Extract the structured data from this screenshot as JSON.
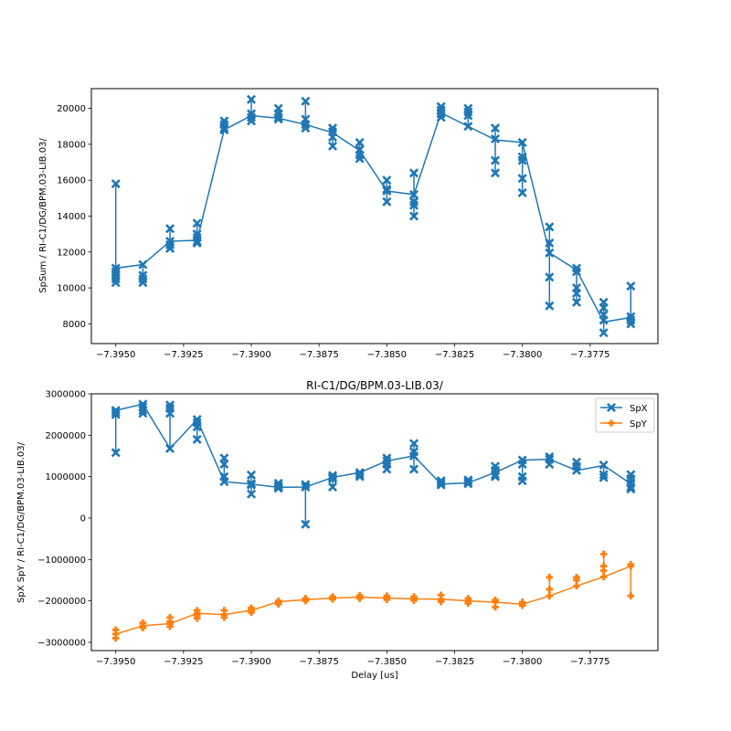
{
  "chart_data": [
    {
      "type": "line",
      "title": "",
      "xlabel": "",
      "ylabel": "SpSum / RI-C1/DG/BPM.03-LIB.03/",
      "xlim": [
        -7.3959,
        -7.375
      ],
      "ylim": [
        6900,
        21100
      ],
      "xticks": [
        -7.395,
        -7.3925,
        -7.39,
        -7.3875,
        -7.385,
        -7.3825,
        -7.38,
        -7.3775
      ],
      "xtick_labels": [
        "−7.3950",
        "−7.3925",
        "−7.3900",
        "−7.3875",
        "−7.3850",
        "−7.3825",
        "−7.3800",
        "−7.3775"
      ],
      "yticks": [
        8000,
        10000,
        12000,
        14000,
        16000,
        18000,
        20000
      ],
      "ytick_labels": [
        "8000",
        "10000",
        "12000",
        "14000",
        "16000",
        "18000",
        "20000"
      ],
      "grid": false,
      "series": [
        {
          "name": "SpSum",
          "color": "#1f77b4",
          "marker": "X",
          "x": [
            -7.395,
            -7.394,
            -7.393,
            -7.392,
            -7.391,
            -7.39,
            -7.389,
            -7.388,
            -7.387,
            -7.386,
            -7.385,
            -7.384,
            -7.383,
            -7.382,
            -7.381,
            -7.38,
            -7.379,
            -7.378,
            -7.377,
            -7.376
          ],
          "mean": [
            11100,
            11300,
            12600,
            12650,
            18800,
            19600,
            19450,
            19100,
            18650,
            17650,
            15400,
            15200,
            19750,
            19000,
            18250,
            18100,
            11950,
            11000,
            8100,
            8350
          ],
          "samples": [
            [
              15800,
              11100,
              10900,
              10700,
              10500,
              10300
            ],
            [
              11300,
              10700,
              10500,
              10300
            ],
            [
              13300,
              12600,
              12400,
              12200
            ],
            [
              13600,
              13000,
              12800,
              12600,
              12500
            ],
            [
              19300,
              19100,
              18900,
              18800
            ],
            [
              20500,
              19700,
              19500,
              19300
            ],
            [
              20000,
              19700,
              19500,
              19400
            ],
            [
              20400,
              19400,
              19100,
              18900
            ],
            [
              18900,
              18700,
              18400,
              17900
            ],
            [
              18100,
              17700,
              17400,
              17200
            ],
            [
              16000,
              15500,
              15400,
              14800
            ],
            [
              16400,
              15200,
              14800,
              14600,
              14000
            ],
            [
              20100,
              19900,
              19700,
              19500
            ],
            [
              20000,
              19800,
              19600,
              19000
            ],
            [
              18900,
              18300,
              17100,
              16400
            ],
            [
              18100,
              17300,
              17100,
              16100,
              15300
            ],
            [
              13400,
              12500,
              11950,
              10600,
              9000
            ],
            [
              11100,
              10900,
              10000,
              9700,
              9200
            ],
            [
              9200,
              8900,
              8500,
              8200,
              7500
            ],
            [
              10100,
              8400,
              8200,
              8000
            ]
          ]
        }
      ]
    },
    {
      "type": "line",
      "title": "RI-C1/DG/BPM.03-LIB.03/",
      "xlabel": "Delay [us]",
      "ylabel": "SpX SpY / RI-C1/DG/BPM.03-LIB.03/",
      "xlim": [
        -7.3959,
        -7.375
      ],
      "ylim": [
        -3200000,
        3000000
      ],
      "xticks": [
        -7.395,
        -7.3925,
        -7.39,
        -7.3875,
        -7.385,
        -7.3825,
        -7.38,
        -7.3775
      ],
      "xtick_labels": [
        "−7.3950",
        "−7.3925",
        "−7.3900",
        "−7.3875",
        "−7.3850",
        "−7.3825",
        "−7.3800",
        "−7.3775"
      ],
      "yticks": [
        -3000000,
        -2000000,
        -1000000,
        0,
        1000000,
        2000000,
        3000000
      ],
      "ytick_labels": [
        "−3000000",
        "−2000000",
        "−1000000",
        "0",
        "1000000",
        "2000000",
        "3000000"
      ],
      "grid": false,
      "legend": {
        "position": "top-right",
        "entries": [
          "SpX",
          "SpY"
        ]
      },
      "series": [
        {
          "name": "SpX",
          "color": "#1f77b4",
          "marker": "X",
          "x": [
            -7.395,
            -7.394,
            -7.393,
            -7.392,
            -7.391,
            -7.39,
            -7.389,
            -7.388,
            -7.387,
            -7.386,
            -7.385,
            -7.384,
            -7.383,
            -7.382,
            -7.381,
            -7.38,
            -7.379,
            -7.378,
            -7.377,
            -7.376
          ],
          "mean": [
            2600000,
            2750000,
            1680000,
            2380000,
            880000,
            820000,
            740000,
            750000,
            980000,
            1100000,
            1380000,
            1500000,
            820000,
            850000,
            1100000,
            1400000,
            1420000,
            1150000,
            1270000,
            830000
          ],
          "samples": [
            [
              2600000,
              2550000,
              2500000,
              1580000
            ],
            [
              2750000,
              2680000,
              2600000,
              2530000
            ],
            [
              2730000,
              2650000,
              2530000,
              1680000
            ],
            [
              2380000,
              2300000,
              2200000,
              1900000
            ],
            [
              1450000,
              1300000,
              1000000,
              880000
            ],
            [
              1040000,
              830000,
              800000,
              580000
            ],
            [
              840000,
              780000,
              740000,
              720000
            ],
            [
              810000,
              750000,
              -150000
            ],
            [
              1030000,
              980000,
              950000,
              750000
            ],
            [
              1100000,
              1050000,
              1000000
            ],
            [
              1450000,
              1380000,
              1300000,
              1180000
            ],
            [
              1800000,
              1600000,
              1500000,
              1180000
            ],
            [
              900000,
              850000,
              800000
            ],
            [
              920000,
              880000,
              830000
            ],
            [
              1250000,
              1150000,
              1050000,
              1000000
            ],
            [
              1400000,
              1300000,
              1000000,
              900000
            ],
            [
              1480000,
              1420000,
              1300000
            ],
            [
              1350000,
              1250000,
              1150000
            ],
            [
              1280000,
              1050000,
              980000
            ],
            [
              1050000,
              950000,
              850000,
              750000,
              700000
            ]
          ]
        },
        {
          "name": "SpY",
          "color": "#ff7f0e",
          "marker": "P",
          "x": [
            -7.395,
            -7.394,
            -7.393,
            -7.392,
            -7.391,
            -7.39,
            -7.389,
            -7.388,
            -7.387,
            -7.386,
            -7.385,
            -7.384,
            -7.383,
            -7.382,
            -7.381,
            -7.38,
            -7.379,
            -7.378,
            -7.377,
            -7.376
          ],
          "mean": [
            -2800000,
            -2600000,
            -2550000,
            -2300000,
            -2330000,
            -2230000,
            -2020000,
            -1970000,
            -1930000,
            -1910000,
            -1930000,
            -1950000,
            -1960000,
            -2000000,
            -2030000,
            -2080000,
            -1880000,
            -1640000,
            -1420000,
            -1160000
          ],
          "samples": [
            [
              -2700000,
              -2800000,
              -2900000
            ],
            [
              -2530000,
              -2600000,
              -2650000
            ],
            [
              -2400000,
              -2500000,
              -2550000,
              -2620000
            ],
            [
              -2230000,
              -2300000,
              -2350000,
              -2420000
            ],
            [
              -2230000,
              -2330000,
              -2400000
            ],
            [
              -2170000,
              -2230000,
              -2280000
            ],
            [
              -2000000,
              -2040000,
              -2080000
            ],
            [
              -1940000,
              -1970000,
              -2000000
            ],
            [
              -1900000,
              -1930000,
              -1960000
            ],
            [
              -1870000,
              -1910000,
              -1940000
            ],
            [
              -1880000,
              -1930000,
              -1970000
            ],
            [
              -1900000,
              -1950000,
              -1990000
            ],
            [
              -1860000,
              -1960000,
              -2020000
            ],
            [
              -1940000,
              -2000000,
              -2060000
            ],
            [
              -1980000,
              -2030000,
              -2150000
            ],
            [
              -2030000,
              -2080000,
              -2110000
            ],
            [
              -1430000,
              -1720000,
              -1880000
            ],
            [
              -1430000,
              -1500000,
              -1640000
            ],
            [
              -870000,
              -1160000,
              -1270000,
              -1420000
            ],
            [
              -1120000,
              -1160000,
              -1880000
            ]
          ]
        }
      ]
    }
  ]
}
